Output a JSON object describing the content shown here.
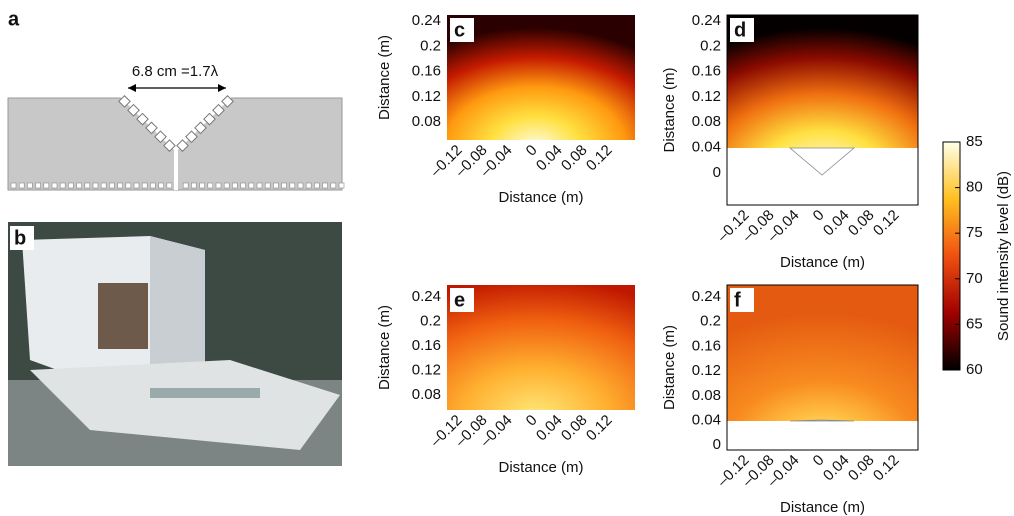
{
  "panels": {
    "a": {
      "label": "a",
      "annotation": "6.8 cm =1.7λ"
    },
    "b": {
      "label": "b"
    },
    "c": {
      "label": "c",
      "y_label": "Distance (m)",
      "x_label": "Distance (m)",
      "y_ticks": [
        "0.24",
        "0.2",
        "0.16",
        "0.12",
        "0.08"
      ],
      "x_ticks": [
        "–0.12",
        "–0.08",
        "–0.04",
        "0",
        "0.04",
        "0.08",
        "0.12"
      ]
    },
    "d": {
      "label": "d",
      "y_label": "Distance (m)",
      "x_label": "Distance (m)",
      "y_ticks": [
        "0.24",
        "0.2",
        "0.16",
        "0.12",
        "0.08",
        "0.04",
        "0"
      ],
      "x_ticks": [
        "–0.12",
        "–0.08",
        "–0.04",
        "0",
        "0.04",
        "0.08",
        "0.12"
      ]
    },
    "e": {
      "label": "e",
      "y_label": "Distance (m)",
      "x_label": "Distance (m)",
      "y_ticks": [
        "0.24",
        "0.2",
        "0.16",
        "0.12",
        "0.08"
      ],
      "x_ticks": [
        "–0.12",
        "–0.08",
        "–0.04",
        "0",
        "0.04",
        "0.08",
        "0.12"
      ]
    },
    "f": {
      "label": "f",
      "y_label": "Distance (m)",
      "x_label": "Distance (m)",
      "y_ticks": [
        "0.24",
        "0.2",
        "0.16",
        "0.12",
        "0.08",
        "0.04",
        "0"
      ],
      "x_ticks": [
        "–0.12",
        "–0.08",
        "–0.04",
        "0",
        "0.04",
        "0.08",
        "0.12"
      ]
    }
  },
  "colorbar": {
    "label": "Sound intensity level (dB)",
    "ticks": [
      "85",
      "80",
      "75",
      "70",
      "65",
      "60"
    ]
  }
}
